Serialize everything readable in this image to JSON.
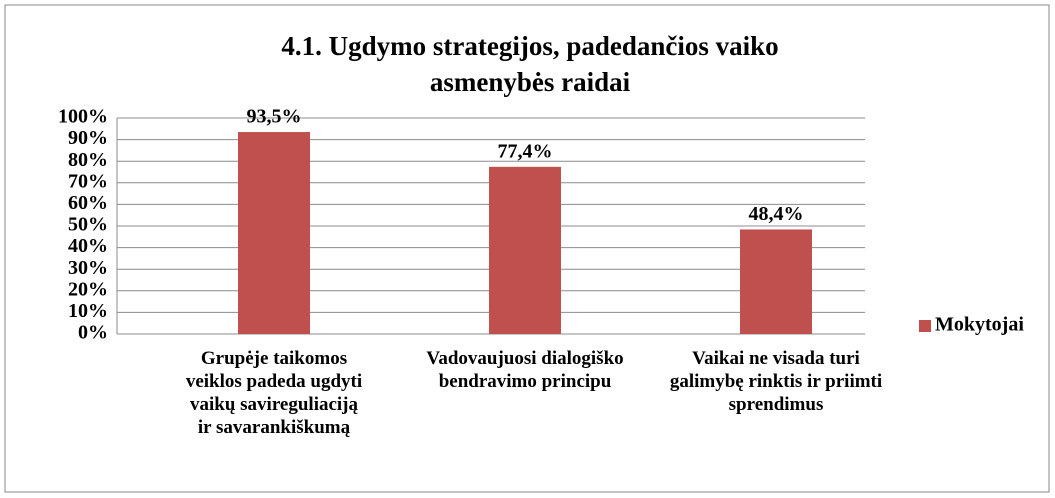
{
  "chart_data": {
    "type": "bar",
    "title": "4.1. Ugdymo strategijos, padedančios vaiko asmenybės raidai",
    "categories": [
      "Grupėje taikomos veiklos padeda ugdyti vaikų savireguliaciją ir savarankiškumą",
      "Vadovaujuosi dialogiško bendravimo principu",
      "Vaikai ne visada turi galimybę rinktis ir priimti sprendimus"
    ],
    "series": [
      {
        "name": "Mokytojai",
        "color": "#c0504d",
        "values": [
          93.5,
          77.4,
          48.4
        ],
        "value_labels": [
          "93,5%",
          "77,4%",
          "48,4%"
        ]
      }
    ],
    "ylim": [
      0,
      100
    ],
    "yticks": [
      {
        "value": 0,
        "label": "0%"
      },
      {
        "value": 10,
        "label": "10%"
      },
      {
        "value": 20,
        "label": "20%"
      },
      {
        "value": 30,
        "label": "30%"
      },
      {
        "value": 40,
        "label": "40%"
      },
      {
        "value": 50,
        "label": "50%"
      },
      {
        "value": 60,
        "label": "60%"
      },
      {
        "value": 70,
        "label": "70%"
      },
      {
        "value": 80,
        "label": "80%"
      },
      {
        "value": 90,
        "label": "90%"
      },
      {
        "value": 100,
        "label": "100%"
      }
    ],
    "grid": true,
    "legend": "right"
  }
}
